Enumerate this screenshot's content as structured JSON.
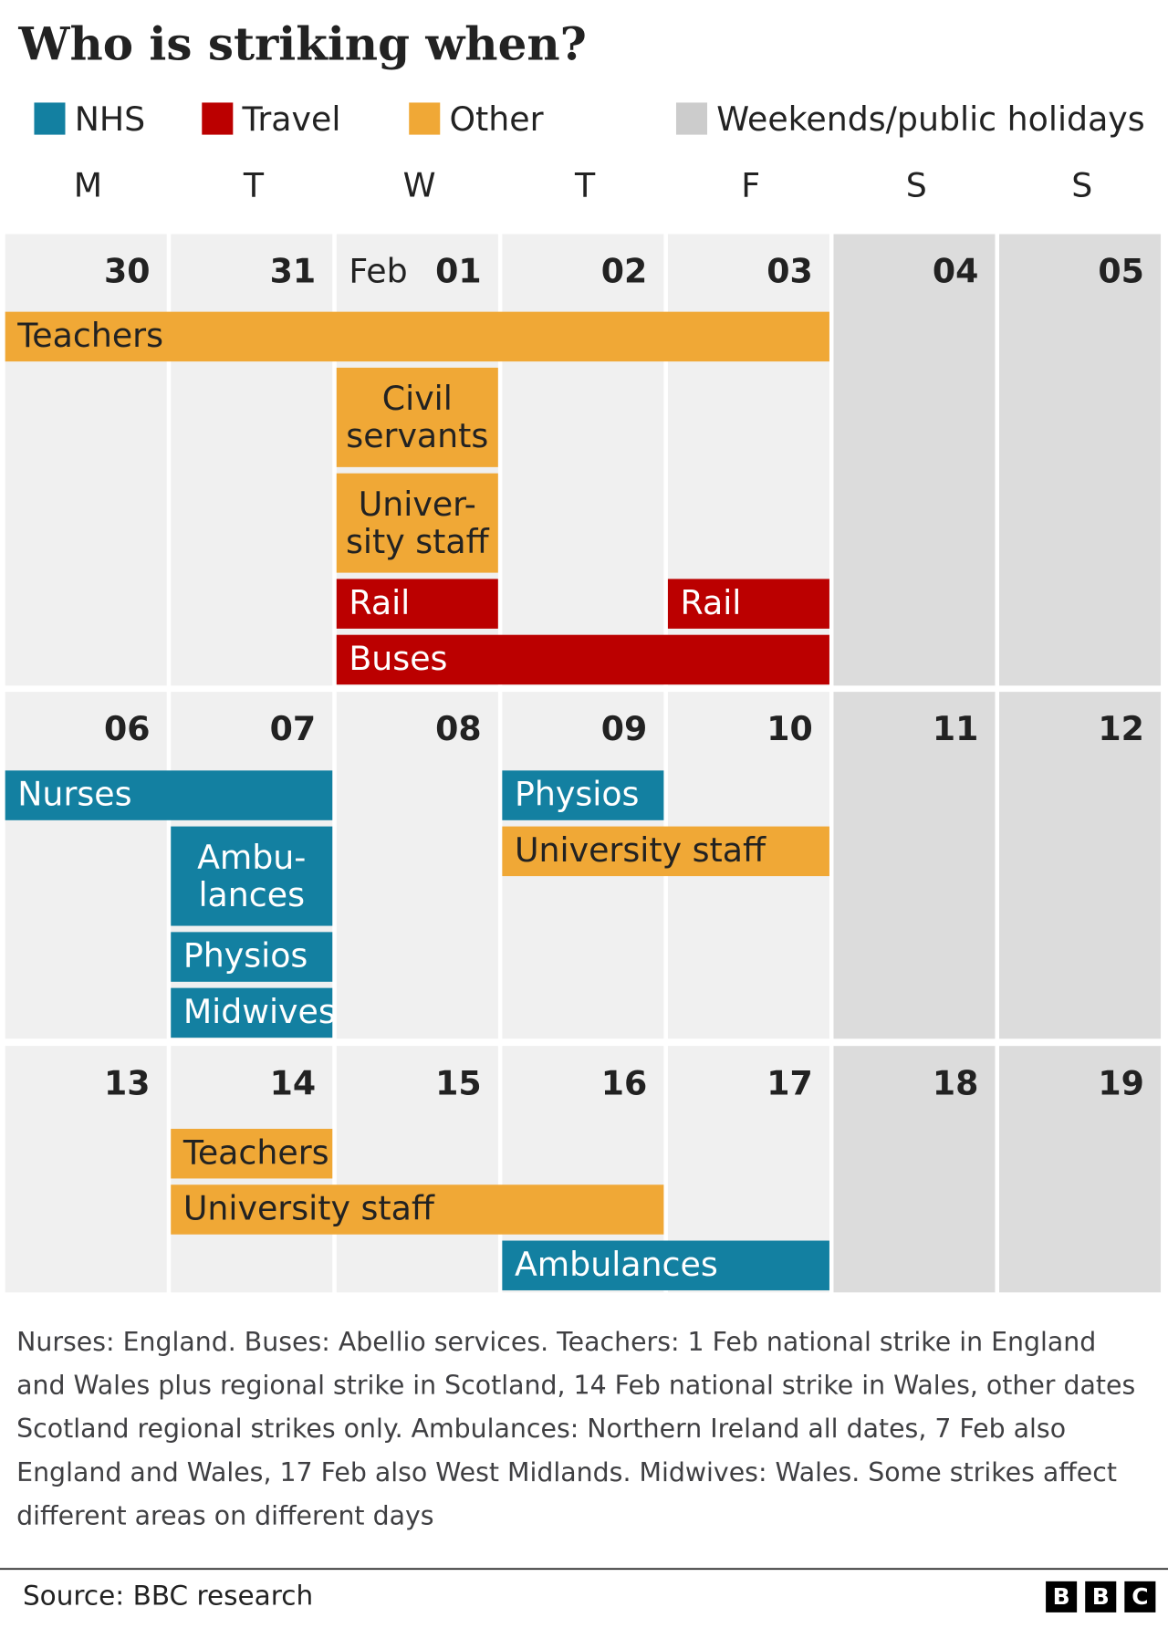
{
  "title": "Who is striking when?",
  "legend": [
    {
      "label": "NHS",
      "color": "#1380a1"
    },
    {
      "label": "Travel",
      "color": "#bb0000"
    },
    {
      "label": "Other",
      "color": "#f0a836"
    },
    {
      "label": "Weekends/public holidays",
      "color": "#cccccc"
    }
  ],
  "weekdays": [
    "M",
    "T",
    "W",
    "T",
    "F",
    "S",
    "S"
  ],
  "weeks": [
    {
      "days": [
        {
          "day": "30"
        },
        {
          "day": "31"
        },
        {
          "month": "Feb",
          "day": "01"
        },
        {
          "day": "02"
        },
        {
          "day": "03"
        },
        {
          "day": "04"
        },
        {
          "day": "05"
        }
      ],
      "events": [
        {
          "lines": [
            "Teachers"
          ],
          "category": "Other",
          "start": "30",
          "end": "03"
        },
        {
          "lines": [
            "Civil",
            "servants"
          ],
          "category": "Other",
          "start": "01",
          "end": "01"
        },
        {
          "lines": [
            "Univer-",
            "sity staff"
          ],
          "category": "Other",
          "start": "01",
          "end": "01"
        },
        {
          "lines": [
            "Rail"
          ],
          "category": "Travel",
          "start": "01",
          "end": "01"
        },
        {
          "lines": [
            "Rail"
          ],
          "category": "Travel",
          "start": "03",
          "end": "03"
        },
        {
          "lines": [
            "Buses"
          ],
          "category": "Travel",
          "start": "01",
          "end": "03"
        }
      ]
    },
    {
      "days": [
        {
          "day": "06"
        },
        {
          "day": "07"
        },
        {
          "day": "08"
        },
        {
          "day": "09"
        },
        {
          "day": "10"
        },
        {
          "day": "11"
        },
        {
          "day": "12"
        }
      ],
      "events": [
        {
          "lines": [
            "Nurses"
          ],
          "category": "NHS",
          "start": "06",
          "end": "07"
        },
        {
          "lines": [
            "Physios"
          ],
          "category": "NHS",
          "start": "09",
          "end": "09"
        },
        {
          "lines": [
            "Ambu-",
            "lances"
          ],
          "category": "NHS",
          "start": "07",
          "end": "07"
        },
        {
          "lines": [
            "University staff"
          ],
          "category": "Other",
          "start": "09",
          "end": "10"
        },
        {
          "lines": [
            "Physios"
          ],
          "category": "NHS",
          "start": "07",
          "end": "07"
        },
        {
          "lines": [
            "Midwives"
          ],
          "category": "NHS",
          "start": "07",
          "end": "07"
        }
      ]
    },
    {
      "days": [
        {
          "day": "13"
        },
        {
          "day": "14"
        },
        {
          "day": "15"
        },
        {
          "day": "16"
        },
        {
          "day": "17"
        },
        {
          "day": "18"
        },
        {
          "day": "19"
        }
      ],
      "events": [
        {
          "lines": [
            "Teachers"
          ],
          "category": "Other",
          "start": "14",
          "end": "14"
        },
        {
          "lines": [
            "University staff"
          ],
          "category": "Other",
          "start": "14",
          "end": "16"
        },
        {
          "lines": [
            "Ambulances"
          ],
          "category": "NHS",
          "start": "16",
          "end": "17"
        }
      ]
    }
  ],
  "note": "Nurses: England. Buses: Abellio services. Teachers: 1 Feb national strike in England and Wales plus regional strike in Scotland, 14 Feb national strike in Wales, other dates Scotland regional strikes only. Ambulances: Northern Ireland all dates, 7 Feb also England and Wales, 17 Feb also West Midlands. Midwives: Wales. Some strikes affect different areas on different days",
  "source": "Source: BBC research",
  "logo": [
    "B",
    "B",
    "C"
  ]
}
